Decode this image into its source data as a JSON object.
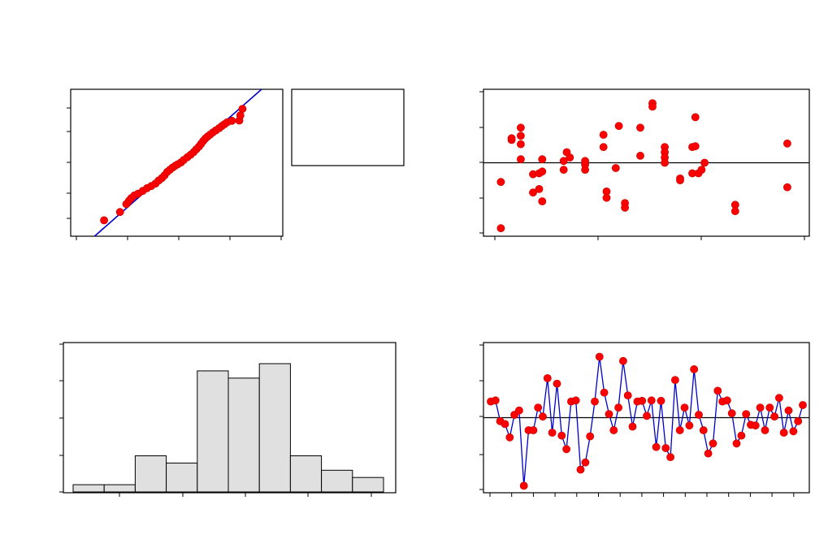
{
  "chart_data": [
    {
      "type": "scatter",
      "panel": "normal-probability-plot",
      "xlim": [
        0,
        4
      ],
      "ylim": [
        0,
        4.8
      ],
      "fit_line": [
        [
          0.45,
          0
        ],
        [
          3.6,
          4.8
        ]
      ],
      "points": [
        [
          0.63,
          0.52
        ],
        [
          0.93,
          0.79
        ],
        [
          1.05,
          1.05
        ],
        [
          1.1,
          1.16
        ],
        [
          1.14,
          1.24
        ],
        [
          1.2,
          1.33
        ],
        [
          1.27,
          1.39
        ],
        [
          1.36,
          1.48
        ],
        [
          1.44,
          1.57
        ],
        [
          1.52,
          1.64
        ],
        [
          1.6,
          1.72
        ],
        [
          1.66,
          1.82
        ],
        [
          1.72,
          1.9
        ],
        [
          1.77,
          1.99
        ],
        [
          1.82,
          2.1
        ],
        [
          1.87,
          2.17
        ],
        [
          1.92,
          2.24
        ],
        [
          1.97,
          2.3
        ],
        [
          2.02,
          2.35
        ],
        [
          2.08,
          2.41
        ],
        [
          2.13,
          2.49
        ],
        [
          2.2,
          2.58
        ],
        [
          2.26,
          2.66
        ],
        [
          2.32,
          2.75
        ],
        [
          2.37,
          2.84
        ],
        [
          2.42,
          2.93
        ],
        [
          2.46,
          3.02
        ],
        [
          2.5,
          3.11
        ],
        [
          2.54,
          3.19
        ],
        [
          2.58,
          3.25
        ],
        [
          2.63,
          3.32
        ],
        [
          2.68,
          3.39
        ],
        [
          2.74,
          3.46
        ],
        [
          2.8,
          3.53
        ],
        [
          2.85,
          3.6
        ],
        [
          2.9,
          3.66
        ],
        [
          2.95,
          3.72
        ],
        [
          3.04,
          3.77
        ],
        [
          3.18,
          3.78
        ],
        [
          3.2,
          3.95
        ],
        [
          3.24,
          4.16
        ]
      ]
    },
    {
      "type": "scatter",
      "panel": "residuals-versus-fits",
      "xlim": [
        0,
        1
      ],
      "ylim": [
        -2.05,
        2.05
      ],
      "reference_line": 0,
      "points": [
        [
          0.025,
          -1.87
        ],
        [
          0.025,
          -0.55
        ],
        [
          0.06,
          0.65
        ],
        [
          0.06,
          0.7
        ],
        [
          0.09,
          1
        ],
        [
          0.09,
          0.77
        ],
        [
          0.09,
          0.53
        ],
        [
          0.09,
          0.1
        ],
        [
          0.13,
          -0.33
        ],
        [
          0.13,
          -0.85
        ],
        [
          0.15,
          -0.75
        ],
        [
          0.15,
          -0.3
        ],
        [
          0.16,
          -0.25
        ],
        [
          0.16,
          -1.1
        ],
        [
          0.16,
          0.1
        ],
        [
          0.23,
          0.05
        ],
        [
          0.23,
          -0.2
        ],
        [
          0.24,
          0.3
        ],
        [
          0.25,
          0.15
        ],
        [
          0.3,
          -0.05
        ],
        [
          0.3,
          0.05
        ],
        [
          0.3,
          -0.2
        ],
        [
          0.36,
          0.45
        ],
        [
          0.36,
          0.8
        ],
        [
          0.37,
          -0.82
        ],
        [
          0.37,
          -1
        ],
        [
          0.4,
          -0.15
        ],
        [
          0.41,
          1.05
        ],
        [
          0.43,
          -1.15
        ],
        [
          0.43,
          -1.28
        ],
        [
          0.48,
          1
        ],
        [
          0.48,
          0.2
        ],
        [
          0.52,
          1.7
        ],
        [
          0.52,
          1.6
        ],
        [
          0.56,
          0.45
        ],
        [
          0.56,
          0.3
        ],
        [
          0.56,
          0.15
        ],
        [
          0.56,
          0
        ],
        [
          0.61,
          -0.45
        ],
        [
          0.61,
          -0.5
        ],
        [
          0.65,
          0.45
        ],
        [
          0.66,
          0.47
        ],
        [
          0.66,
          1.3
        ],
        [
          0.65,
          -0.3
        ],
        [
          0.67,
          -0.3
        ],
        [
          0.68,
          -0.2
        ],
        [
          0.69,
          0
        ],
        [
          0.79,
          -1.2
        ],
        [
          0.79,
          -1.38
        ],
        [
          0.96,
          0.55
        ],
        [
          0.96,
          -0.7
        ]
      ]
    },
    {
      "type": "bar",
      "panel": "histogram",
      "ylim": [
        0,
        4
      ],
      "values": [
        0.2,
        0.2,
        1.0,
        0.8,
        3.35,
        3.15,
        3.55,
        1.0,
        0.6,
        0.4
      ]
    },
    {
      "type": "line",
      "panel": "residuals-versus-order",
      "ylim": [
        -2.05,
        2.05
      ],
      "reference_line": 0,
      "values": [
        0.45,
        0.48,
        -0.1,
        -0.18,
        -0.55,
        0.08,
        0.2,
        -1.9,
        -0.35,
        -0.35,
        0.28,
        0.03,
        1.1,
        -0.42,
        0.95,
        -0.5,
        -0.88,
        0.45,
        0.48,
        -1.45,
        -1.25,
        -0.52,
        0.45,
        1.7,
        0.7,
        0.1,
        -0.35,
        0.28,
        1.58,
        0.62,
        -0.25,
        0.45,
        0.47,
        0.05,
        0.48,
        -0.82,
        0.47,
        -0.85,
        -1.1,
        1.05,
        -0.35,
        0.28,
        -0.22,
        1.35,
        0.08,
        -0.35,
        -1,
        -0.72,
        0.75,
        0.45,
        0.48,
        0.12,
        -0.72,
        -0.5,
        0.1,
        -0.2,
        -0.22,
        0.28,
        -0.35,
        0.28,
        0.03,
        0.55,
        -0.42,
        0.2,
        -0.38,
        -0.1,
        0.35
      ]
    }
  ]
}
